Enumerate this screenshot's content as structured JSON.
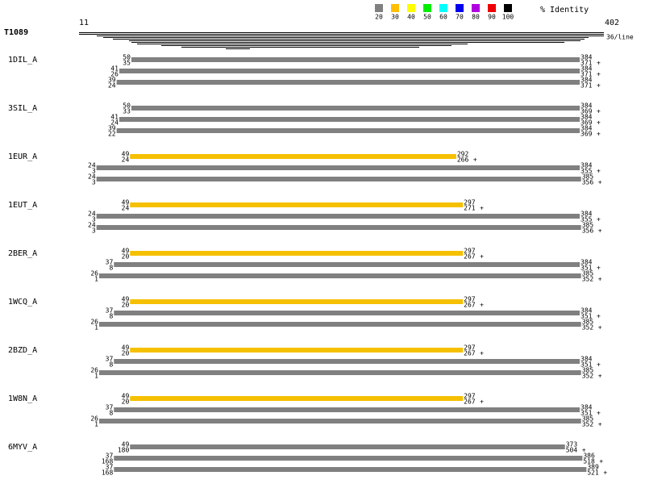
{
  "legend": {
    "title": "% Identity",
    "items": [
      {
        "label": "20",
        "color": "#808080"
      },
      {
        "label": "30",
        "color": "#ffbf00"
      },
      {
        "label": "40",
        "color": "#ffff00"
      },
      {
        "label": "50",
        "color": "#00ee00"
      },
      {
        "label": "60",
        "color": "#00ffff"
      },
      {
        "label": "70",
        "color": "#0000ee"
      },
      {
        "label": "80",
        "color": "#b000e0"
      },
      {
        "label": "90",
        "color": "#ee0000"
      },
      {
        "label": "100",
        "color": "#000000"
      }
    ]
  },
  "header": {
    "query": "T1089",
    "start": 11,
    "end": 402,
    "per_line": "36/line"
  },
  "groups": [
    {
      "name": "1DIL_A",
      "hits": [
        {
          "q_start": 50,
          "s_start": 35,
          "q_end": 384,
          "s_end": 371,
          "strand": "+",
          "color": "#808080"
        },
        {
          "q_start": 41,
          "s_start": 26,
          "q_end": 384,
          "s_end": 371,
          "strand": "+",
          "color": "#808080"
        },
        {
          "q_start": 39,
          "s_start": 24,
          "q_end": 384,
          "s_end": 371,
          "strand": "+",
          "color": "#808080"
        }
      ]
    },
    {
      "name": "3SIL_A",
      "hits": [
        {
          "q_start": 50,
          "s_start": 33,
          "q_end": 384,
          "s_end": 369,
          "strand": "+",
          "color": "#808080"
        },
        {
          "q_start": 41,
          "s_start": 24,
          "q_end": 384,
          "s_end": 369,
          "strand": "+",
          "color": "#808080"
        },
        {
          "q_start": 39,
          "s_start": 22,
          "q_end": 384,
          "s_end": 369,
          "strand": "+",
          "color": "#808080"
        }
      ]
    },
    {
      "name": "1EUR_A",
      "hits": [
        {
          "q_start": 49,
          "s_start": 24,
          "q_end": 292,
          "s_end": 266,
          "strand": "+",
          "color": "#f5c000"
        },
        {
          "q_start": 24,
          "s_start": 3,
          "q_end": 384,
          "s_end": 355,
          "strand": "+",
          "color": "#808080"
        },
        {
          "q_start": 24,
          "s_start": 3,
          "q_end": 385,
          "s_end": 356,
          "strand": "+",
          "color": "#808080"
        }
      ]
    },
    {
      "name": "1EUT_A",
      "hits": [
        {
          "q_start": 49,
          "s_start": 24,
          "q_end": 297,
          "s_end": 271,
          "strand": "+",
          "color": "#f5c000"
        },
        {
          "q_start": 24,
          "s_start": 3,
          "q_end": 384,
          "s_end": 355,
          "strand": "+",
          "color": "#808080"
        },
        {
          "q_start": 24,
          "s_start": 3,
          "q_end": 385,
          "s_end": 356,
          "strand": "+",
          "color": "#808080"
        }
      ]
    },
    {
      "name": "2BER_A",
      "hits": [
        {
          "q_start": 49,
          "s_start": 20,
          "q_end": 297,
          "s_end": 267,
          "strand": "+",
          "color": "#f5c000"
        },
        {
          "q_start": 37,
          "s_start": 8,
          "q_end": 384,
          "s_end": 351,
          "strand": "+",
          "color": "#808080"
        },
        {
          "q_start": 26,
          "s_start": 1,
          "q_end": 385,
          "s_end": 352,
          "strand": "+",
          "color": "#808080"
        }
      ]
    },
    {
      "name": "1WCQ_A",
      "hits": [
        {
          "q_start": 49,
          "s_start": 20,
          "q_end": 297,
          "s_end": 267,
          "strand": "+",
          "color": "#f5c000"
        },
        {
          "q_start": 37,
          "s_start": 8,
          "q_end": 384,
          "s_end": 351,
          "strand": "+",
          "color": "#808080"
        },
        {
          "q_start": 26,
          "s_start": 1,
          "q_end": 385,
          "s_end": 352,
          "strand": "+",
          "color": "#808080"
        }
      ]
    },
    {
      "name": "2BZD_A",
      "hits": [
        {
          "q_start": 49,
          "s_start": 20,
          "q_end": 297,
          "s_end": 267,
          "strand": "+",
          "color": "#f5c000"
        },
        {
          "q_start": 37,
          "s_start": 8,
          "q_end": 384,
          "s_end": 351,
          "strand": "+",
          "color": "#808080"
        },
        {
          "q_start": 26,
          "s_start": 1,
          "q_end": 385,
          "s_end": 352,
          "strand": "+",
          "color": "#808080"
        }
      ]
    },
    {
      "name": "1W8N_A",
      "hits": [
        {
          "q_start": 49,
          "s_start": 20,
          "q_end": 297,
          "s_end": 267,
          "strand": "+",
          "color": "#f5c000"
        },
        {
          "q_start": 37,
          "s_start": 8,
          "q_end": 384,
          "s_end": 351,
          "strand": "+",
          "color": "#808080"
        },
        {
          "q_start": 26,
          "s_start": 1,
          "q_end": 385,
          "s_end": 352,
          "strand": "+",
          "color": "#808080"
        }
      ]
    },
    {
      "name": "6MYV_A",
      "hits": [
        {
          "q_start": 49,
          "s_start": 180,
          "q_end": 373,
          "s_end": 504,
          "strand": "+",
          "color": "#808080"
        },
        {
          "q_start": 37,
          "s_start": 168,
          "q_end": 386,
          "s_end": 518,
          "strand": "+",
          "color": "#808080"
        },
        {
          "q_start": 37,
          "s_start": 168,
          "q_end": 389,
          "s_end": 521,
          "strand": "+",
          "color": "#808080"
        }
      ]
    }
  ]
}
